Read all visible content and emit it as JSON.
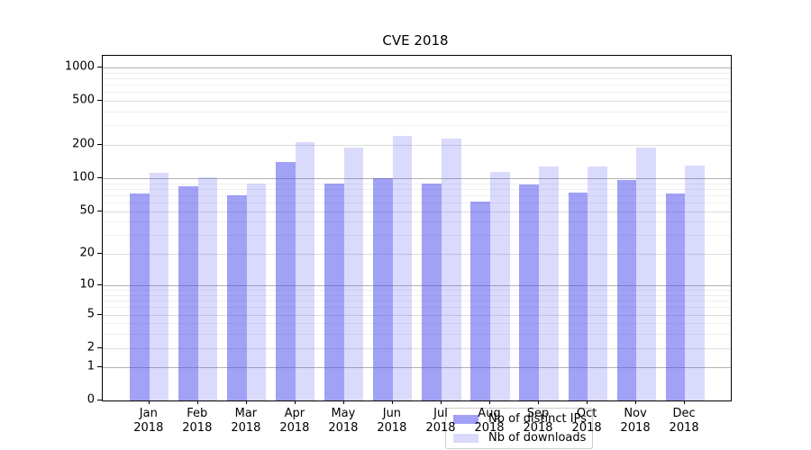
{
  "title": "CVE 2018",
  "chart_data": {
    "type": "bar",
    "title": "CVE 2018",
    "categories": [
      "Jan",
      "Feb",
      "Mar",
      "Apr",
      "May",
      "Jun",
      "Jul",
      "Aug",
      "Sep",
      "Oct",
      "Nov",
      "Dec"
    ],
    "year_label": "2018",
    "series": [
      {
        "name": "Nb of distinct IPs",
        "color_base": "#4444ee",
        "fill_alpha": 0.5,
        "color_displayed": "#a1a1f1",
        "values": [
          73,
          85,
          70,
          140,
          89,
          100,
          90,
          61,
          87,
          74,
          96,
          73
        ]
      },
      {
        "name": "Nb of downloads",
        "color_base": "#4444ee",
        "fill_alpha": 0.2,
        "color_displayed": "#dcdcfa",
        "values": [
          113,
          102,
          89,
          212,
          188,
          243,
          227,
          114,
          127,
          128,
          189,
          130
        ]
      }
    ],
    "y_axis": {
      "scale": "log1p",
      "tick_labels": [
        0,
        1,
        2,
        5,
        10,
        20,
        50,
        100,
        200,
        500,
        1000
      ],
      "major_grid_values": [
        1,
        10,
        100,
        1000
      ],
      "mid_grid_values": [
        2,
        5,
        20,
        50,
        200,
        500
      ],
      "minor_grid_values": [
        3,
        4,
        6,
        7,
        8,
        9,
        30,
        40,
        60,
        70,
        80,
        90,
        300,
        400,
        600,
        700,
        800,
        900
      ],
      "range_max": 1270,
      "grid_major_color": "#b2b2b2",
      "grid_mid_color": "#dcdcdc",
      "grid_minor_color": "#efefef"
    },
    "legend": {
      "entries": [
        "Nb of distinct IPs",
        "Nb of downloads"
      ],
      "position": "inside-bottom-center"
    }
  }
}
